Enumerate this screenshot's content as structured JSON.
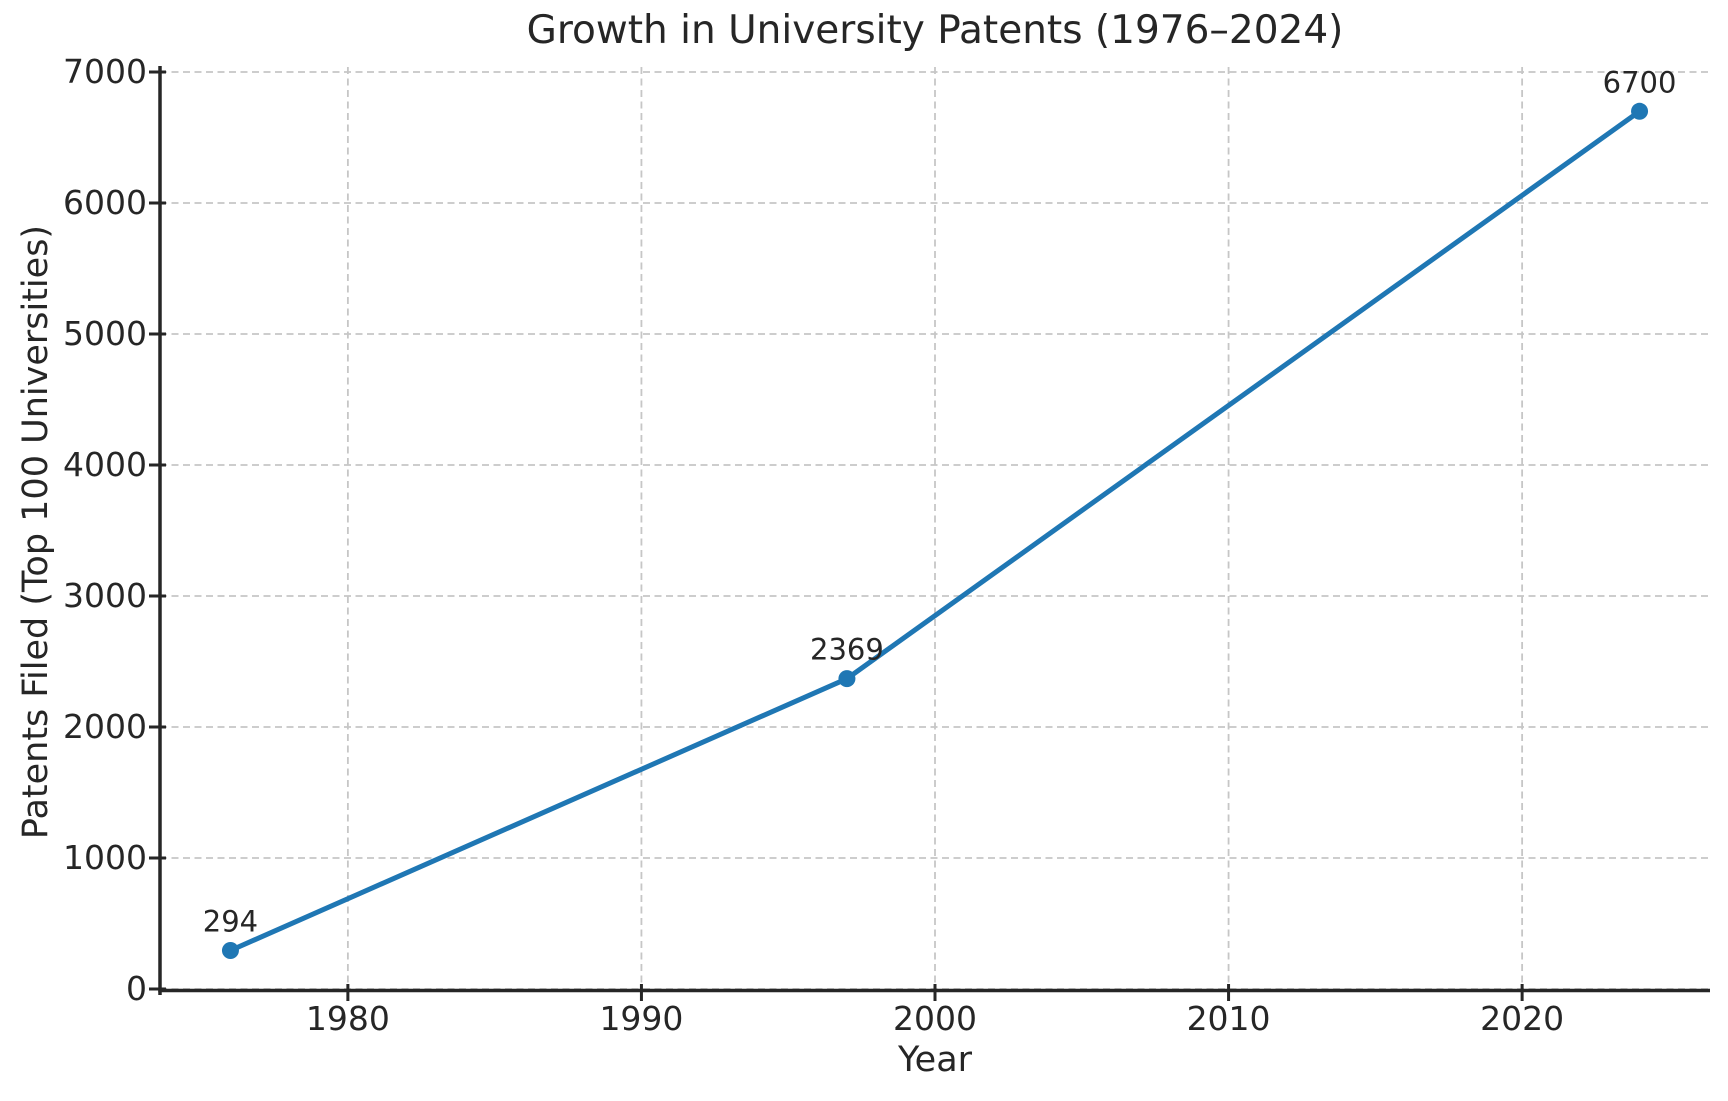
{
  "chart_data": {
    "type": "line",
    "title": "Growth in University Patents (1976–2024)",
    "xlabel": "Year",
    "ylabel": "Patents Filed (Top 100 Universities)",
    "x": [
      1976,
      1997,
      2024
    ],
    "y": [
      294,
      2369,
      6700
    ],
    "point_labels": [
      "294",
      "2369",
      "6700"
    ],
    "xticks": [
      1980,
      1990,
      2000,
      2010,
      2020
    ],
    "xtick_labels": [
      "1980",
      "1990",
      "2000",
      "2010",
      "2020"
    ],
    "yticks": [
      0,
      1000,
      2000,
      3000,
      4000,
      5000,
      6000,
      7000
    ],
    "ytick_labels": [
      "0",
      "1000",
      "2000",
      "3000",
      "4000",
      "5000",
      "6000",
      "7000"
    ],
    "xlim": [
      1973.6,
      2026.4
    ],
    "ylim": [
      0,
      7000
    ],
    "grid": true,
    "grid_style": "dashed",
    "legend": false,
    "colors": {
      "line": "#1f77b4",
      "marker": "#1f77b4",
      "grid": "#c6c6c6",
      "text": "#262626",
      "spine": "#262626",
      "background": "#ffffff"
    }
  }
}
